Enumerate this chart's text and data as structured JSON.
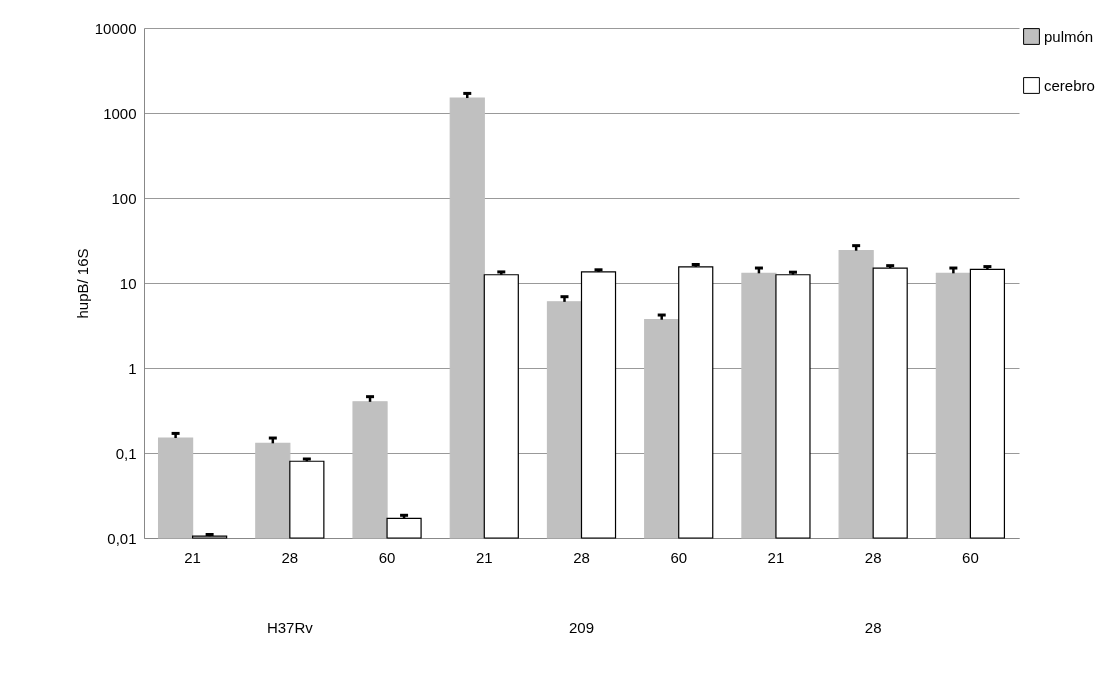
{
  "chart_data": {
    "type": "bar",
    "ylabel": "hupB/ 16S",
    "log": "y",
    "grid": "y",
    "legend": "right",
    "categories": [
      "21",
      "28",
      "60",
      "21",
      "28",
      "60",
      "21",
      "28",
      "60"
    ],
    "annotations": [
      "H37Rv",
      "209",
      "28"
    ],
    "ylim": [
      0.01,
      10000
    ],
    "yticks": [
      {
        "value": 0.01,
        "label": "0,01"
      },
      {
        "value": 0.1,
        "label": "0,1"
      },
      1,
      10,
      100,
      1000,
      10000
    ],
    "series": [
      {
        "name": "pulmón",
        "color": "#c0c0c0",
        "values": [
          0.15,
          0.13,
          0.4,
          1500,
          6,
          3.7,
          13,
          24,
          13
        ],
        "errors": [
          [
            0.15,
            0.17
          ],
          [
            0.13,
            0.15
          ],
          [
            0.4,
            0.46
          ],
          [
            1500,
            1700
          ],
          [
            6,
            6.9
          ],
          [
            3.7,
            4.2
          ],
          [
            13,
            15
          ],
          [
            24,
            27.5
          ],
          [
            13,
            15
          ]
        ]
      },
      {
        "name": "cerebro",
        "color": "#ffffff",
        "values": [
          0.0105,
          0.08,
          0.017,
          12.5,
          13.5,
          15.5,
          12.5,
          15,
          14.5
        ],
        "errors": [
          [
            0.0105,
            0.011
          ],
          [
            0.08,
            0.085
          ],
          [
            0.017,
            0.0185
          ],
          [
            12.5,
            13.5
          ],
          [
            13.5,
            14.3
          ],
          [
            15.5,
            16.5
          ],
          [
            12.5,
            13.4
          ],
          [
            15,
            16
          ],
          [
            14.5,
            15.6
          ]
        ]
      }
    ]
  }
}
